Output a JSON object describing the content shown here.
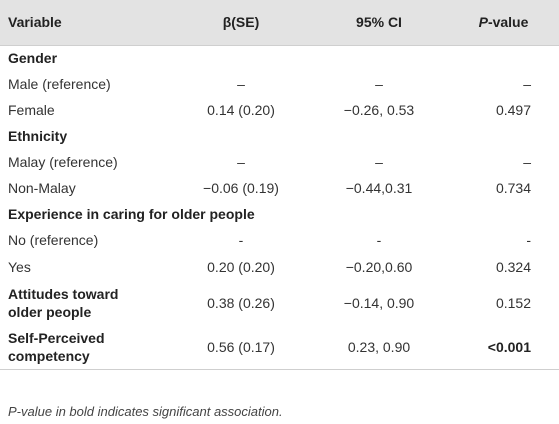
{
  "table": {
    "headers": {
      "variable": "Variable",
      "beta": "β(SE)",
      "ci": "95% CI",
      "p_ital": "P",
      "p_rest": "-value"
    },
    "sections": {
      "gender": "Gender",
      "ethnicity": "Ethnicity",
      "experience": "Experience in caring for older people"
    },
    "rows": {
      "male": {
        "label": "Male (reference)",
        "beta": "–",
        "ci": "–",
        "p": "–"
      },
      "female": {
        "label": "Female",
        "beta": "0.14 (0.20)",
        "ci": "−0.26, 0.53",
        "p": "0.497"
      },
      "malay": {
        "label": "Malay (reference)",
        "beta": "–",
        "ci": "–",
        "p": "–"
      },
      "nonmalay": {
        "label": "Non-Malay",
        "beta": "−0.06 (0.19)",
        "ci": "−0.44,0.31",
        "p": "0.734"
      },
      "no_ref": {
        "label": "No (reference)",
        "beta": "-",
        "ci": "-",
        "p": "-"
      },
      "yes": {
        "label": "Yes",
        "beta": "0.20 (0.20)",
        "ci": "−0.20,0.60",
        "p": "0.324"
      },
      "attitudes": {
        "label_line1": "Attitudes toward",
        "label_line2": "older people",
        "beta": "0.38 (0.26)",
        "ci": "−0.14, 0.90",
        "p": "0.152"
      },
      "competency": {
        "label_line1": "Self-Perceived",
        "label_line2": "competency",
        "beta": "0.56 (0.17)",
        "ci": "0.23, 0.90",
        "p": "<0.001"
      }
    }
  },
  "footnote": {
    "p_ital": "P",
    "rest": "-value in bold indicates significant association."
  }
}
